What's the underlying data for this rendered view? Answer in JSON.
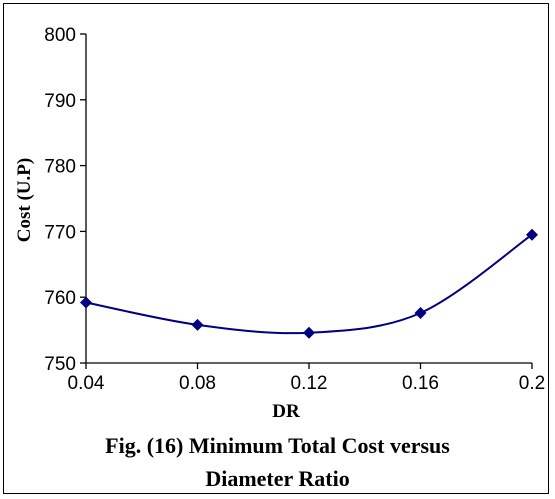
{
  "caption": {
    "line1": "Fig. (16) Minimum Total Cost versus",
    "line2": "Diameter Ratio"
  },
  "chart_data": {
    "type": "line",
    "title": "",
    "xlabel": "DR",
    "ylabel": "Cost (U.P)",
    "x": [
      0.04,
      0.08,
      0.12,
      0.16,
      0.2
    ],
    "x_tick_labels": [
      "0.04",
      "0.08",
      "0.12",
      "0.16",
      "0.2"
    ],
    "y_tick_labels": [
      "750",
      "760",
      "770",
      "780",
      "790",
      "800"
    ],
    "xlim": [
      0.04,
      0.2
    ],
    "ylim": [
      750,
      800
    ],
    "grid": false,
    "legend": "none",
    "smoothed": true,
    "marker": "diamond",
    "color": "#000080",
    "series": [
      {
        "values": [
          759.2,
          755.8,
          754.6,
          757.6,
          769.5
        ]
      }
    ]
  }
}
